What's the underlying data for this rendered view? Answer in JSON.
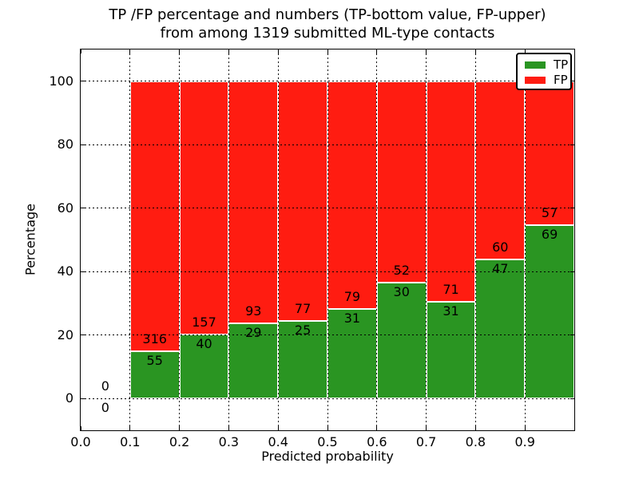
{
  "title": {
    "line1": "TP /FP percentage and numbers (TP-bottom value, FP-upper)",
    "line2": "from among 1319 submitted ML-type contacts"
  },
  "legend": {
    "position": "upper right",
    "items": [
      {
        "label": "TP",
        "color": "#2a9522"
      },
      {
        "label": "FP",
        "color": "#ff1c11"
      }
    ]
  },
  "chart_data": {
    "type": "bar",
    "stacked": true,
    "title": "TP /FP percentage and numbers (TP-bottom value, FP-upper) from among 1319 submitted ML-type contacts",
    "xlabel": "Predicted probability",
    "ylabel": "Percentage",
    "total_contacts": 1319,
    "xlim": [
      0.0,
      1.0
    ],
    "ylim": [
      -10,
      110
    ],
    "xticks": [
      "0.0",
      "0.1",
      "0.2",
      "0.3",
      "0.4",
      "0.5",
      "0.6",
      "0.7",
      "0.8",
      "0.9"
    ],
    "yticks": [
      0,
      20,
      40,
      60,
      80,
      100
    ],
    "grid": "dotted",
    "bin_edges": [
      0.0,
      0.1,
      0.2,
      0.3,
      0.4,
      0.5,
      0.6,
      0.7,
      0.8,
      0.9,
      1.0
    ],
    "series": [
      {
        "name": "TP",
        "color": "#2a9522",
        "counts": [
          0,
          55,
          40,
          29,
          25,
          31,
          30,
          31,
          47,
          69
        ]
      },
      {
        "name": "FP",
        "color": "#ff1c11",
        "counts": [
          0,
          316,
          157,
          93,
          77,
          79,
          52,
          71,
          60,
          57
        ]
      }
    ]
  }
}
